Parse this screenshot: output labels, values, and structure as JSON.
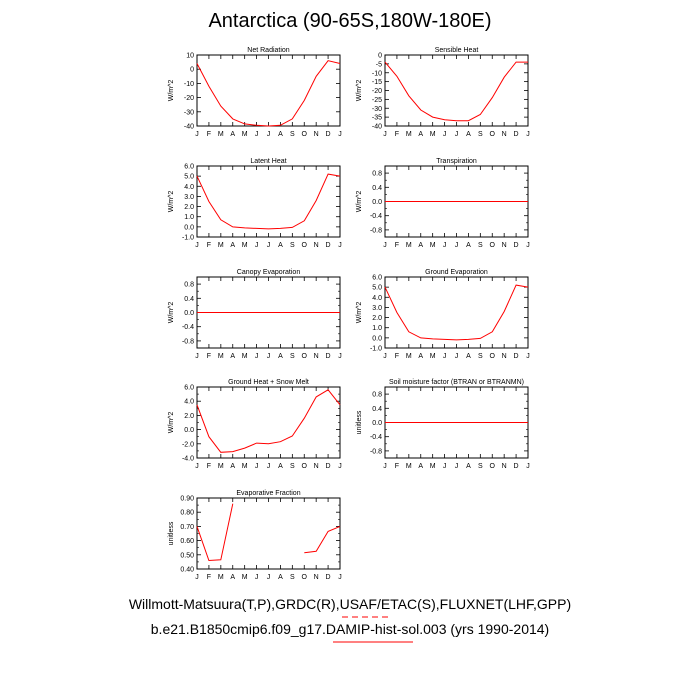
{
  "title": "Antarctica (90-65S,180W-180E)",
  "captions": {
    "line1": "Willmott-Matsuura(T,P),GRDC(R),USAF/ETAC(S),FLUXNET(LHF,GPP)",
    "line2": "b.e21.B1850cmip6.f09_g17.DAMIP-hist-sol.003 (yrs 1990-2014)"
  },
  "colors": {
    "series": "#ff0000",
    "axis": "#000000",
    "legend_key": "#ff0000"
  },
  "chart_data": [
    {
      "type": "line",
      "title": "Net Radiation",
      "ylabel": "W/m^2",
      "ylim": [
        -40,
        10
      ],
      "yticks": [
        10,
        0,
        -10,
        -20,
        -30,
        -40
      ],
      "ytick_labels": [
        "10",
        "0",
        "-10",
        "-20",
        "-30",
        "-40"
      ],
      "categories": [
        "J",
        "F",
        "M",
        "A",
        "M",
        "J",
        "J",
        "A",
        "S",
        "O",
        "N",
        "D",
        "J"
      ],
      "series": [
        {
          "values": [
            4,
            -12,
            -26,
            -35,
            -38.5,
            -39.5,
            -40,
            -39.5,
            -35,
            -22,
            -5,
            6,
            4
          ]
        }
      ]
    },
    {
      "type": "line",
      "title": "Sensible Heat",
      "ylabel": "W/m^2",
      "ylim": [
        -40,
        0
      ],
      "yticks": [
        0,
        -5,
        -10,
        -15,
        -20,
        -25,
        -30,
        -35,
        -40
      ],
      "ytick_labels": [
        "0",
        "-5",
        "-10",
        "-15",
        "-20",
        "-25",
        "-30",
        "-35",
        "-40"
      ],
      "categories": [
        "J",
        "F",
        "M",
        "A",
        "M",
        "J",
        "J",
        "A",
        "S",
        "O",
        "N",
        "D",
        "J"
      ],
      "series": [
        {
          "values": [
            -4,
            -12,
            -23,
            -31,
            -35,
            -36.5,
            -37,
            -37,
            -33.5,
            -24,
            -12.5,
            -4,
            -4
          ]
        }
      ]
    },
    {
      "type": "line",
      "title": "Latent Heat",
      "ylabel": "W/m^2",
      "ylim": [
        -1,
        6
      ],
      "yticks": [
        6,
        5,
        4,
        3,
        2,
        1,
        0,
        -1
      ],
      "ytick_labels": [
        "6.0",
        "5.0",
        "4.0",
        "3.0",
        "2.0",
        "1.0",
        "0.0",
        "-1.0"
      ],
      "categories": [
        "J",
        "F",
        "M",
        "A",
        "M",
        "J",
        "J",
        "A",
        "S",
        "O",
        "N",
        "D",
        "J"
      ],
      "series": [
        {
          "values": [
            5.0,
            2.5,
            0.7,
            0.0,
            -0.1,
            -0.15,
            -0.2,
            -0.15,
            -0.05,
            0.6,
            2.6,
            5.2,
            5.0
          ]
        }
      ]
    },
    {
      "type": "line",
      "title": "Transpiration",
      "ylabel": "W/m^2",
      "ylim": [
        -1,
        1
      ],
      "yticks": [
        0.8,
        0.4,
        0,
        -0.4,
        -0.8
      ],
      "ytick_labels": [
        "0.8",
        "0.4",
        "0.0",
        "-0.4",
        "-0.8"
      ],
      "minor_yticks": [
        0.6,
        0.2,
        -0.2,
        -0.6
      ],
      "categories": [
        "J",
        "F",
        "M",
        "A",
        "M",
        "J",
        "J",
        "A",
        "S",
        "O",
        "N",
        "D",
        "J"
      ],
      "series": [
        {
          "values": [
            0,
            0,
            0,
            0,
            0,
            0,
            0,
            0,
            0,
            0,
            0,
            0,
            0
          ]
        }
      ]
    },
    {
      "type": "line",
      "title": "Canopy Evaporation",
      "ylabel": "W/m^2",
      "ylim": [
        -1,
        1
      ],
      "yticks": [
        0.8,
        0.4,
        0,
        -0.4,
        -0.8
      ],
      "ytick_labels": [
        "0.8",
        "0.4",
        "0.0",
        "-0.4",
        "-0.8"
      ],
      "minor_yticks": [
        0.6,
        0.2,
        -0.2,
        -0.6
      ],
      "categories": [
        "J",
        "F",
        "M",
        "A",
        "M",
        "J",
        "J",
        "A",
        "S",
        "O",
        "N",
        "D",
        "J"
      ],
      "series": [
        {
          "values": [
            0,
            0,
            0,
            0,
            0,
            0,
            0,
            0,
            0,
            0,
            0,
            0,
            0
          ]
        }
      ]
    },
    {
      "type": "line",
      "title": "Ground Evaporation",
      "ylabel": "W/m^2",
      "ylim": [
        -1,
        6
      ],
      "yticks": [
        6,
        5,
        4,
        3,
        2,
        1,
        0,
        -1
      ],
      "ytick_labels": [
        "6.0",
        "5.0",
        "4.0",
        "3.0",
        "2.0",
        "1.0",
        "0.0",
        "-1.0"
      ],
      "categories": [
        "J",
        "F",
        "M",
        "A",
        "M",
        "J",
        "J",
        "A",
        "S",
        "O",
        "N",
        "D",
        "J"
      ],
      "series": [
        {
          "values": [
            5.0,
            2.5,
            0.6,
            0.0,
            -0.1,
            -0.15,
            -0.2,
            -0.15,
            -0.05,
            0.6,
            2.6,
            5.2,
            5.0
          ]
        }
      ]
    },
    {
      "type": "line",
      "title": "Ground Heat + Snow Melt",
      "ylabel": "W/m^2",
      "ylim": [
        -4,
        6
      ],
      "yticks": [
        6,
        4,
        2,
        0,
        -2,
        -4
      ],
      "ytick_labels": [
        "6.0",
        "4.0",
        "2.0",
        "0.0",
        "-2.0",
        "-4.0"
      ],
      "minor_yticks": [
        5,
        3,
        1,
        -1,
        -3
      ],
      "categories": [
        "J",
        "F",
        "M",
        "A",
        "M",
        "J",
        "J",
        "A",
        "S",
        "O",
        "N",
        "D",
        "J"
      ],
      "series": [
        {
          "values": [
            3.5,
            -1.0,
            -3.2,
            -3.1,
            -2.6,
            -1.9,
            -2.0,
            -1.7,
            -0.9,
            1.6,
            4.6,
            5.6,
            3.5
          ]
        }
      ]
    },
    {
      "type": "line",
      "title": "Soil moisture factor (BTRAN or BTRANMN)",
      "ylabel": "unitless",
      "ylim": [
        -1,
        1
      ],
      "yticks": [
        0.8,
        0.4,
        0,
        -0.4,
        -0.8
      ],
      "ytick_labels": [
        "0.8",
        "0.4",
        "0.0",
        "-0.4",
        "-0.8"
      ],
      "minor_yticks": [
        0.6,
        0.2,
        -0.2,
        -0.6
      ],
      "categories": [
        "J",
        "F",
        "M",
        "A",
        "M",
        "J",
        "J",
        "A",
        "S",
        "O",
        "N",
        "D",
        "J"
      ],
      "series": [
        {
          "values": [
            0,
            0,
            0,
            0,
            0,
            0,
            0,
            0,
            0,
            0,
            0,
            0,
            0
          ]
        }
      ]
    },
    {
      "type": "line",
      "title": "Evaporative Fraction",
      "ylabel": "unitless",
      "ylim": [
        0.4,
        0.9
      ],
      "yticks": [
        0.9,
        0.8,
        0.7,
        0.6,
        0.5,
        0.4
      ],
      "ytick_labels": [
        "0.90",
        "0.80",
        "0.70",
        "0.60",
        "0.50",
        "0.40"
      ],
      "minor_yticks": [
        0.85,
        0.75,
        0.65,
        0.55,
        0.45
      ],
      "categories": [
        "J",
        "F",
        "M",
        "A",
        "M",
        "J",
        "J",
        "A",
        "S",
        "O",
        "N",
        "D",
        "J"
      ],
      "series": [
        {
          "values": [
            0.7,
            0.46,
            0.465,
            0.86,
            null,
            null,
            null,
            null,
            null,
            0.515,
            0.525,
            0.665,
            0.7
          ]
        }
      ]
    }
  ]
}
